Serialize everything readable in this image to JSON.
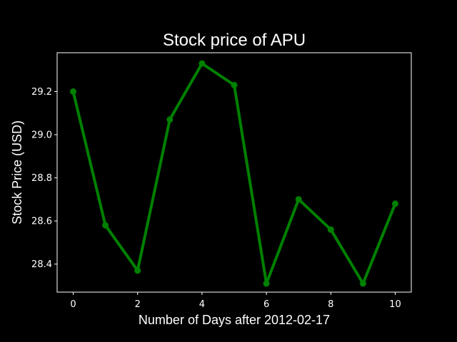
{
  "chart_data": {
    "type": "line",
    "title": "Stock price of APU",
    "xlabel": "Number of Days after 2012-02-17",
    "ylabel": "Stock Price (USD)",
    "x": [
      0,
      1,
      2,
      3,
      4,
      5,
      6,
      7,
      8,
      9,
      10
    ],
    "series": [
      {
        "values": [
          29.2,
          28.58,
          28.37,
          29.07,
          29.33,
          29.23,
          28.31,
          28.7,
          28.56,
          28.31,
          28.68
        ],
        "color": "#008000",
        "marker": "circle"
      }
    ],
    "xlim": [
      -0.5,
      10.5
    ],
    "ylim": [
      28.27,
      29.38
    ],
    "xticks": [
      0,
      2,
      4,
      6,
      8,
      10
    ],
    "xtick_labels": [
      "0",
      "2",
      "4",
      "6",
      "8",
      "10"
    ],
    "yticks": [
      28.4,
      28.6,
      28.8,
      29.0,
      29.2
    ],
    "ytick_labels": [
      "28.4",
      "28.6",
      "28.8",
      "29.0",
      "29.2"
    ],
    "grid": false,
    "legend": false,
    "background": "#000000",
    "foreground": "#ffffff"
  }
}
